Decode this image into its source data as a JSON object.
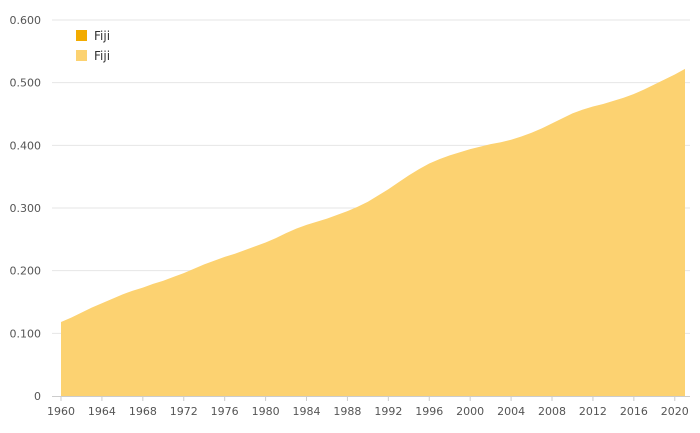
{
  "chart_data": {
    "type": "area",
    "title": "",
    "xlabel": "",
    "ylabel": "",
    "x": [
      1960,
      1961,
      1962,
      1963,
      1964,
      1965,
      1966,
      1967,
      1968,
      1969,
      1970,
      1971,
      1972,
      1973,
      1974,
      1975,
      1976,
      1977,
      1978,
      1979,
      1980,
      1981,
      1982,
      1983,
      1984,
      1985,
      1986,
      1987,
      1988,
      1989,
      1990,
      1991,
      1992,
      1993,
      1994,
      1995,
      1996,
      1997,
      1998,
      1999,
      2000,
      2001,
      2002,
      2003,
      2004,
      2005,
      2006,
      2007,
      2008,
      2009,
      2010,
      2011,
      2012,
      2013,
      2014,
      2015,
      2016,
      2017,
      2018,
      2019,
      2020,
      2021
    ],
    "series": [
      {
        "name": "Fiji",
        "values": [
          0.118,
          0.125,
          0.133,
          0.141,
          0.148,
          0.155,
          0.162,
          0.168,
          0.173,
          0.179,
          0.184,
          0.19,
          0.196,
          0.203,
          0.21,
          0.216,
          0.222,
          0.227,
          0.233,
          0.239,
          0.245,
          0.252,
          0.26,
          0.267,
          0.273,
          0.278,
          0.283,
          0.289,
          0.295,
          0.302,
          0.31,
          0.32,
          0.33,
          0.341,
          0.352,
          0.362,
          0.371,
          0.378,
          0.384,
          0.389,
          0.394,
          0.398,
          0.402,
          0.405,
          0.409,
          0.414,
          0.42,
          0.427,
          0.435,
          0.443,
          0.451,
          0.457,
          0.462,
          0.466,
          0.471,
          0.476,
          0.482,
          0.489,
          0.497,
          0.505,
          0.513,
          0.522
        ]
      }
    ],
    "ylim": [
      0,
      0.6
    ],
    "yticks": [
      0,
      0.1,
      0.2,
      0.3,
      0.4,
      0.5,
      0.6
    ],
    "ytick_labels": [
      "0",
      "0.100",
      "0.200",
      "0.300",
      "0.400",
      "0.500",
      "0.600"
    ],
    "xticks": [
      1960,
      1964,
      1968,
      1972,
      1976,
      1980,
      1984,
      1988,
      1992,
      1996,
      2000,
      2004,
      2008,
      2012,
      2016,
      2020
    ],
    "grid": true,
    "legend": {
      "placement": "top-left",
      "entries": [
        {
          "label": "Fiji",
          "color": "#f2ab00"
        },
        {
          "label": "Fiji",
          "color": "#fcd271"
        }
      ]
    },
    "fill_color": "#fcd271"
  }
}
